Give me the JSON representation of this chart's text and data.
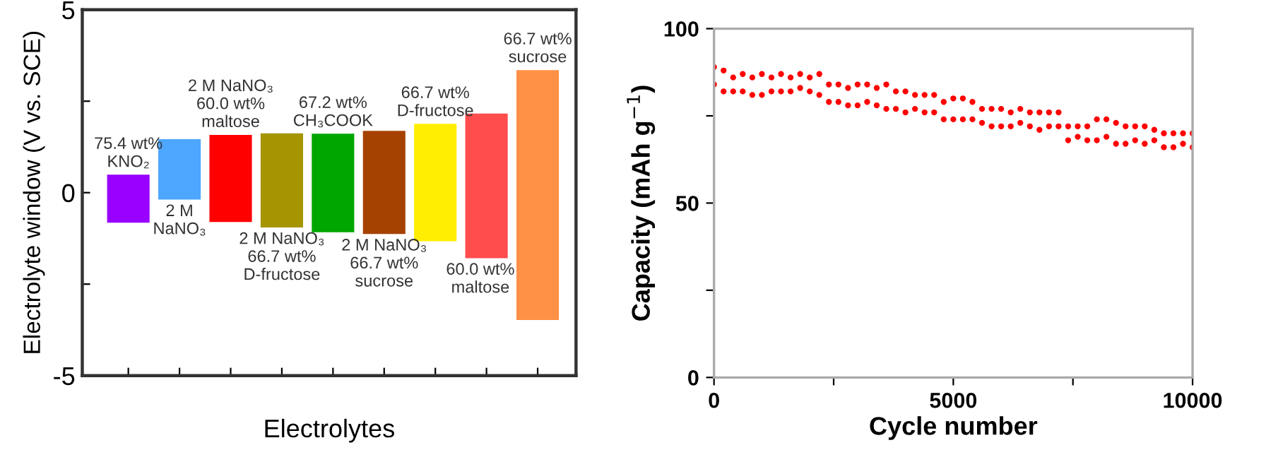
{
  "chart_data": [
    {
      "type": "bar",
      "xlabel": "Electrolytes",
      "ylabel": "Electrolyte window (V vs. SCE)",
      "categories": [
        null,
        null,
        null,
        null,
        null,
        null,
        null,
        null,
        null
      ],
      "base": [
        -0.82,
        -0.19,
        -0.8,
        -0.95,
        -1.08,
        -1.13,
        -1.33,
        -1.79,
        -3.48
      ],
      "values": [
        1.31,
        1.65,
        2.38,
        2.57,
        2.69,
        2.82,
        3.21,
        3.95,
        6.83
      ],
      "colors": [
        "#9900ff",
        "#4da6ff",
        "#ff0000",
        "#a69500",
        "#00a600",
        "#a64200",
        "#ffee00",
        "#ff4d4d",
        "#ff9147"
      ],
      "ylim": [
        -5,
        5
      ],
      "yticks": [
        -5,
        {
          "value": -2.5,
          "label": null
        },
        0,
        {
          "value": 2.5,
          "label": null
        },
        5
      ],
      "tick_labels": "y",
      "grid": false,
      "annotations": [
        "75.4 wt%\nKNO₂",
        "2 M\nNaNO₃",
        "2 M NaNO₃\n60.0 wt%\nmaltose",
        "2 M NaNO₃\n66.7 wt%\nD-fructose",
        "67.2 wt%\nCH₃COOK",
        "2 M NaNO₃\n66.7 wt%\nsucrose",
        "66.7 wt%\nD-fructose",
        "60.0 wt%\nmaltose",
        "66.7 wt%\nsucrose"
      ]
    },
    {
      "type": "scatter",
      "xlabel": "Cycle number",
      "ylabel": "Capacity (mAh g$^{−1}$)",
      "color": "#ff0000",
      "marker": "circle",
      "grid": false,
      "xlim": [
        0,
        10000
      ],
      "xticks": [
        0,
        {
          "value": 2500,
          "label": null
        },
        5000,
        {
          "value": 7500,
          "label": null
        },
        10000
      ],
      "ylim": [
        0,
        100
      ],
      "yticks": [
        0,
        {
          "value": 25,
          "label": null
        },
        50,
        {
          "value": 75,
          "label": null
        },
        100
      ],
      "x": [
        0,
        0,
        200,
        200,
        400,
        400,
        600,
        600,
        800,
        800,
        1000,
        1000,
        1200,
        1200,
        1400,
        1400,
        1600,
        1600,
        1800,
        1800,
        2000,
        2000,
        2200,
        2200,
        2400,
        2400,
        2600,
        2600,
        2800,
        2800,
        3000,
        3000,
        3200,
        3200,
        3400,
        3400,
        3600,
        3600,
        3800,
        3800,
        4000,
        4000,
        4200,
        4200,
        4400,
        4400,
        4600,
        4600,
        4800,
        4800,
        5000,
        5000,
        5200,
        5200,
        5400,
        5400,
        5600,
        5600,
        5800,
        5800,
        6000,
        6000,
        6200,
        6200,
        6400,
        6400,
        6600,
        6600,
        6800,
        6800,
        7000,
        7000,
        7200,
        7200,
        7400,
        7400,
        7600,
        7600,
        7800,
        7800,
        8000,
        8000,
        8200,
        8200,
        8400,
        8400,
        8600,
        8600,
        8800,
        8800,
        9000,
        9000,
        9200,
        9200,
        9400,
        9400,
        9600,
        9600,
        9800,
        9800,
        10000,
        10000
      ],
      "values": [
        89,
        84,
        88,
        82,
        86,
        82,
        87,
        82,
        86,
        81,
        87,
        81,
        86,
        82,
        87,
        82,
        86,
        82,
        87,
        83,
        86,
        82,
        87,
        81,
        84,
        79,
        84,
        79,
        83,
        78,
        84,
        78,
        84,
        79,
        83,
        78,
        84,
        77,
        82,
        77,
        82,
        76,
        81,
        77,
        81,
        76,
        81,
        76,
        79,
        74,
        80,
        74,
        80,
        74,
        79,
        74,
        77,
        73,
        77,
        72,
        77,
        72,
        76,
        72,
        77,
        73,
        76,
        72,
        76,
        71,
        76,
        72,
        76,
        72,
        72,
        68,
        72,
        69,
        72,
        68,
        74,
        68,
        74,
        69,
        73,
        67,
        72,
        67,
        72,
        68,
        72,
        67,
        71,
        68,
        70,
        66,
        70,
        66,
        70,
        67,
        70,
        66
      ]
    }
  ]
}
